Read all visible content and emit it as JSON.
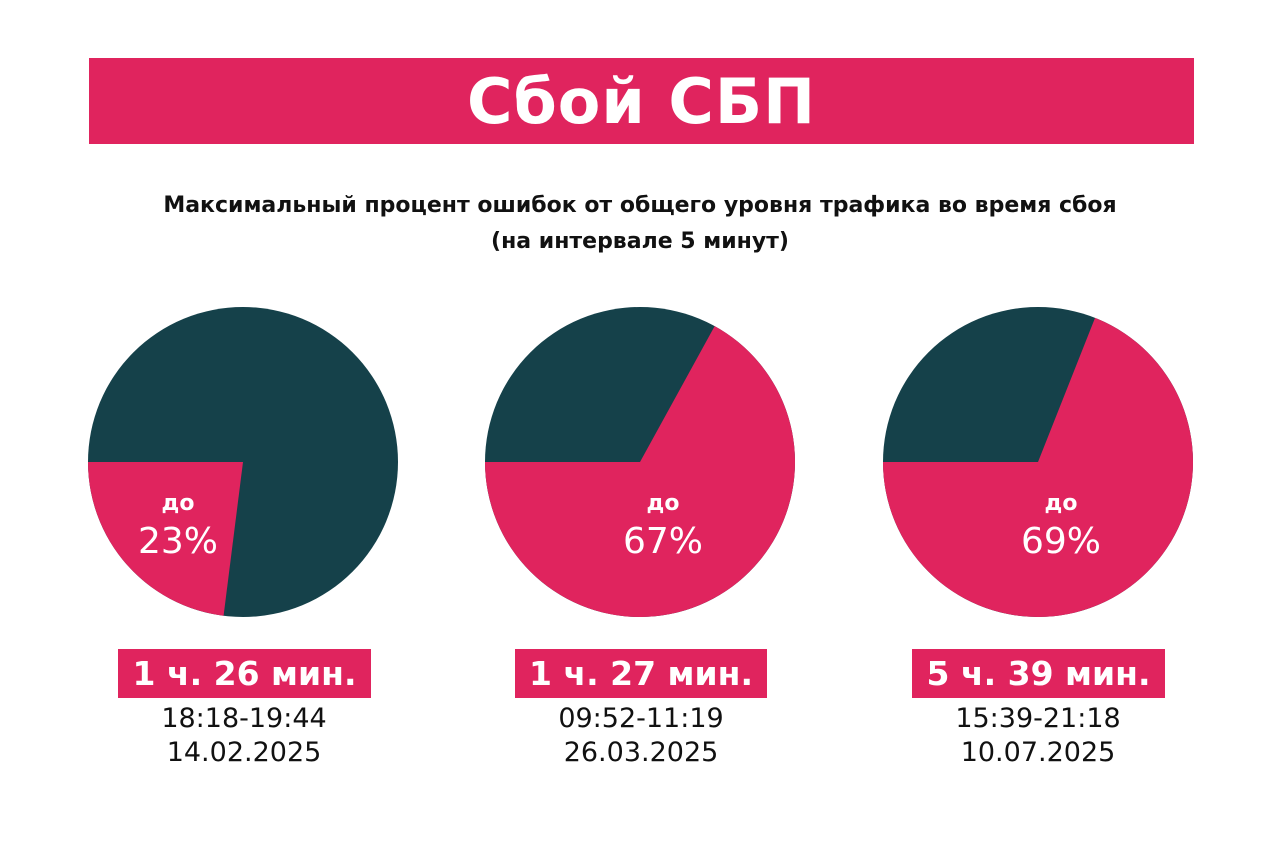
{
  "colors": {
    "accent": "#E0245E",
    "dark": "#15414A"
  },
  "title": "Сбой СБП",
  "chart_data": {
    "type": "pie",
    "title": "Максимальный процент ошибок от общего уровня трафика во время сбоя",
    "subtitle": "(на интервале 5 минут)",
    "charts": [
      {
        "prefix": "до",
        "value": 23,
        "label": "23%",
        "duration": "1 ч. 26 мин.",
        "time": "18:18-19:44",
        "date": "14.02.2025"
      },
      {
        "prefix": "до",
        "value": 67,
        "label": "67%",
        "duration": "1 ч. 27 мин.",
        "time": "09:52-11:19",
        "date": "26.03.2025"
      },
      {
        "prefix": "до",
        "value": 69,
        "label": "69%",
        "duration": "5 ч. 39 мин.",
        "time": "15:39-21:18",
        "date": "10.07.2025"
      }
    ]
  }
}
